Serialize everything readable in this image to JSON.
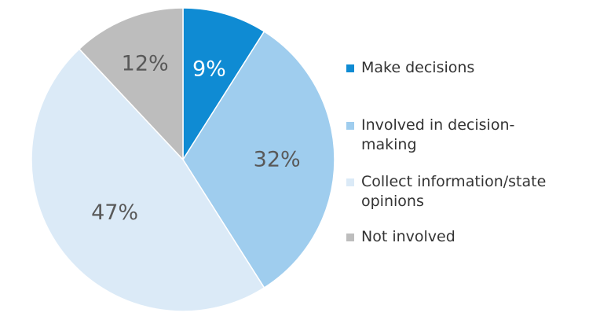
{
  "chart_data": {
    "type": "pie",
    "title": "",
    "legend_position": "right",
    "categories": [
      "Make decisions",
      "Involved in decision-making",
      "Collect information/state opinions",
      "Not involved"
    ],
    "values": [
      9,
      32,
      47,
      12
    ],
    "value_labels": [
      "9%",
      "32%",
      "47%",
      "12%"
    ],
    "colors": [
      "#0f8bd3",
      "#9fcdee",
      "#dbeaf7",
      "#bdbdbd"
    ],
    "label_colors": [
      "#ffffff",
      "#595959",
      "#595959",
      "#595959"
    ],
    "legend_labels": [
      "Make decisions",
      "Involved in decision-\nmaking",
      "Collect information/state\nopinions",
      "Not involved"
    ]
  }
}
